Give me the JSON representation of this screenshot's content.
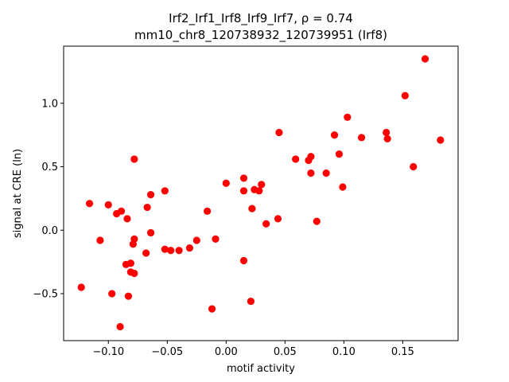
{
  "chart_data": {
    "type": "scatter",
    "title_line1": "Irf2_Irf1_Irf8_Irf9_Irf7, ρ = 0.74",
    "title_line2": "mm10_chr8_120738932_120739951 (Irf8)",
    "xlabel": "motif activity",
    "ylabel": "signal at CRE (ln)",
    "xlim": [
      -0.138,
      0.197
    ],
    "ylim": [
      -0.87,
      1.45
    ],
    "x_ticks": [
      {
        "value": -0.1,
        "label": "−0.10"
      },
      {
        "value": -0.05,
        "label": "−0.05"
      },
      {
        "value": 0.0,
        "label": "0.00"
      },
      {
        "value": 0.05,
        "label": "0.05"
      },
      {
        "value": 0.1,
        "label": "0.10"
      },
      {
        "value": 0.15,
        "label": "0.15"
      }
    ],
    "y_ticks": [
      {
        "value": -0.5,
        "label": "−0.5"
      },
      {
        "value": 0.0,
        "label": "0.0"
      },
      {
        "value": 0.5,
        "label": "0.5"
      },
      {
        "value": 1.0,
        "label": "1.0"
      }
    ],
    "marker_color": "#ff0000",
    "grid": false,
    "points": [
      [
        0.169,
        1.35
      ],
      [
        0.152,
        1.06
      ],
      [
        0.103,
        0.89
      ],
      [
        0.182,
        0.71
      ],
      [
        0.115,
        0.73
      ],
      [
        0.137,
        0.72
      ],
      [
        0.136,
        0.77
      ],
      [
        0.159,
        0.5
      ],
      [
        0.092,
        0.75
      ],
      [
        0.096,
        0.6
      ],
      [
        0.099,
        0.34
      ],
      [
        0.085,
        0.45
      ],
      [
        0.077,
        0.07
      ],
      [
        0.072,
        0.58
      ],
      [
        0.07,
        0.55
      ],
      [
        0.072,
        0.45
      ],
      [
        0.059,
        0.56
      ],
      [
        0.045,
        0.77
      ],
      [
        0.044,
        0.09
      ],
      [
        0.034,
        0.05
      ],
      [
        0.03,
        0.36
      ],
      [
        0.028,
        0.31
      ],
      [
        0.024,
        0.32
      ],
      [
        0.022,
        0.17
      ],
      [
        0.015,
        0.41
      ],
      [
        0.015,
        0.31
      ],
      [
        0.015,
        -0.24
      ],
      [
        0.021,
        -0.56
      ],
      [
        0.0,
        0.37
      ],
      [
        -0.009,
        -0.07
      ],
      [
        -0.012,
        -0.62
      ],
      [
        -0.016,
        0.15
      ],
      [
        -0.025,
        -0.08
      ],
      [
        -0.031,
        -0.14
      ],
      [
        -0.04,
        -0.16
      ],
      [
        -0.047,
        -0.16
      ],
      [
        -0.052,
        -0.15
      ],
      [
        -0.052,
        0.31
      ],
      [
        -0.064,
        0.28
      ],
      [
        -0.064,
        -0.02
      ],
      [
        -0.067,
        0.18
      ],
      [
        -0.068,
        -0.18
      ],
      [
        -0.078,
        0.56
      ],
      [
        -0.078,
        -0.07
      ],
      [
        -0.079,
        -0.11
      ],
      [
        -0.078,
        -0.34
      ],
      [
        -0.081,
        -0.26
      ],
      [
        -0.081,
        -0.33
      ],
      [
        -0.085,
        -0.27
      ],
      [
        -0.084,
        0.09
      ],
      [
        -0.083,
        -0.52
      ],
      [
        -0.089,
        0.15
      ],
      [
        -0.093,
        0.13
      ],
      [
        -0.09,
        -0.76
      ],
      [
        -0.097,
        -0.5
      ],
      [
        -0.1,
        0.2
      ],
      [
        -0.107,
        -0.08
      ],
      [
        -0.116,
        0.21
      ],
      [
        -0.123,
        -0.45
      ]
    ]
  }
}
